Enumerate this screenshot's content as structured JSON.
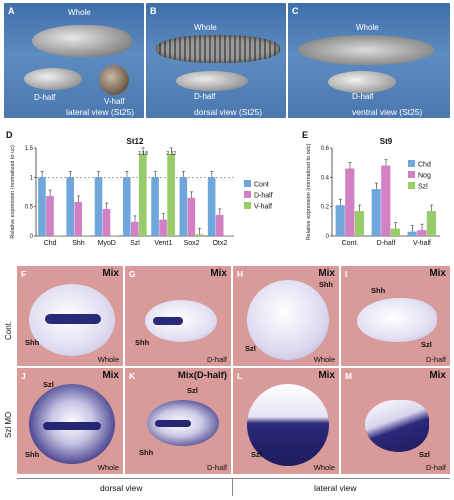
{
  "top_panels": [
    {
      "letter": "A",
      "labels": {
        "whole": "Whole",
        "d": "D-half",
        "v": "V-half"
      },
      "view": "lateral view (St25)"
    },
    {
      "letter": "B",
      "labels": {
        "whole": "Whole",
        "d": "D-half"
      },
      "view": "dorsal view (St25)"
    },
    {
      "letter": "C",
      "labels": {
        "whole": "Whole",
        "d": "D-half"
      },
      "view": "ventral view (St25)"
    }
  ],
  "chart_data": [
    {
      "panel": "D",
      "type": "bar",
      "title": "St12",
      "ylabel": "Relative expression (normalized to uc)",
      "ylim": [
        0,
        1.5
      ],
      "yticks": [
        0,
        0.5,
        1,
        1.5
      ],
      "categories": [
        "Chd",
        "Shh",
        "MyoD",
        "Szl",
        "Vent1",
        "Sox2",
        "Otx2"
      ],
      "series": [
        {
          "name": "Cont",
          "color": "#6fa7dc",
          "values": [
            1.0,
            1.0,
            1.0,
            1.0,
            1.0,
            1.0,
            1.0
          ]
        },
        {
          "name": "D-half",
          "color": "#d37fc4",
          "values": [
            0.68,
            0.58,
            0.46,
            0.24,
            0.28,
            0.65,
            0.36
          ]
        },
        {
          "name": "V-half",
          "color": "#98cc6a",
          "values": [
            0.0,
            0.0,
            0.0,
            1.4,
            1.4,
            0.03,
            0.0
          ]
        }
      ],
      "annotations": [
        "2.18",
        "2.12"
      ],
      "dashed_line": 1.0,
      "legend": "right"
    },
    {
      "panel": "E",
      "type": "bar",
      "title": "St9",
      "ylabel": "Relative expression (normalized to odc)",
      "ylim": [
        0,
        0.6
      ],
      "yticks": [
        0,
        0.2,
        0.4,
        0.6
      ],
      "categories": [
        "Cont.",
        "D-half",
        "V-half"
      ],
      "series": [
        {
          "name": "Chd",
          "color": "#6fa7dc",
          "values": [
            0.21,
            0.32,
            0.03
          ]
        },
        {
          "name": "Nog",
          "color": "#d37fc4",
          "values": [
            0.46,
            0.48,
            0.04
          ]
        },
        {
          "name": "Szl",
          "color": "#98cc6a",
          "values": [
            0.17,
            0.05,
            0.17
          ]
        }
      ],
      "legend": "top-right"
    }
  ],
  "mix_panels": {
    "title": "Mix",
    "rows": [
      {
        "label": "Cont.",
        "panels": [
          {
            "letter": "F",
            "title": "Mix",
            "bottom": "Whole",
            "ann": [
              "Shh"
            ]
          },
          {
            "letter": "G",
            "title": "Mix",
            "bottom": "D-half",
            "ann": [
              "Shh"
            ]
          },
          {
            "letter": "H",
            "title": "Mix",
            "bottom": "Whole",
            "ann": [
              "Shh",
              "Szl"
            ]
          },
          {
            "letter": "I",
            "title": "Mix",
            "bottom": "D-half",
            "ann": [
              "Shh",
              "Szl"
            ]
          }
        ]
      },
      {
        "label": "Szl MO",
        "panels": [
          {
            "letter": "J",
            "title": "Mix",
            "bottom": "Whole",
            "ann": [
              "Szl",
              "Shh"
            ]
          },
          {
            "letter": "K",
            "title": "Mix(D-half)",
            "bottom": "D-half",
            "ann": [
              "Szl",
              "Shh"
            ]
          },
          {
            "letter": "L",
            "title": "Mix",
            "bottom": "Whole",
            "ann": [
              "Szl"
            ]
          },
          {
            "letter": "M",
            "title": "Mix",
            "bottom": "D-half",
            "ann": [
              "Szl"
            ]
          }
        ]
      }
    ],
    "footer": {
      "left": "dorsal view",
      "right": "lateral view"
    }
  }
}
